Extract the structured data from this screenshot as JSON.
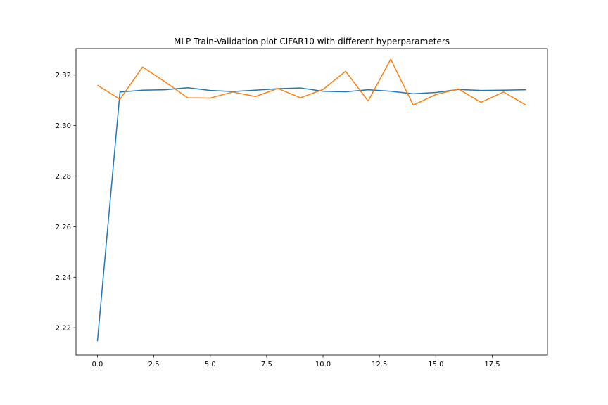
{
  "chart_data": {
    "type": "line",
    "title": "MLP Train-Validation plot CIFAR10 with different hyperparameters",
    "xlabel": "",
    "ylabel": "",
    "xlim": [
      -0.95,
      19.95
    ],
    "ylim": [
      2.2092,
      2.3305
    ],
    "grid": false,
    "xticks": [
      0.0,
      2.5,
      5.0,
      7.5,
      10.0,
      12.5,
      15.0,
      17.5
    ],
    "xtick_labels": [
      "0.0",
      "2.5",
      "5.0",
      "7.5",
      "10.0",
      "12.5",
      "15.0",
      "17.5"
    ],
    "yticks": [
      2.22,
      2.24,
      2.26,
      2.28,
      2.3,
      2.32
    ],
    "ytick_labels": [
      "2.22",
      "2.24",
      "2.26",
      "2.28",
      "2.30",
      "2.32"
    ],
    "x": [
      0,
      1,
      2,
      3,
      4,
      5,
      6,
      7,
      8,
      9,
      10,
      11,
      12,
      13,
      14,
      15,
      16,
      17,
      18,
      19
    ],
    "series": [
      {
        "color": "#1f77b4",
        "values": [
          2.2147,
          2.3133,
          2.314,
          2.3142,
          2.315,
          2.3139,
          2.3135,
          2.314,
          2.3146,
          2.3149,
          2.3136,
          2.3134,
          2.3142,
          2.3136,
          2.3126,
          2.3131,
          2.3143,
          2.3139,
          2.314,
          2.3142
        ]
      },
      {
        "color": "#ff7f0e",
        "values": [
          2.316,
          2.3104,
          2.3232,
          2.3173,
          2.311,
          2.3109,
          2.3133,
          2.3115,
          2.3147,
          2.311,
          2.3143,
          2.3215,
          2.3097,
          2.3263,
          2.3081,
          2.3123,
          2.3145,
          2.3092,
          2.3133,
          2.3081
        ]
      }
    ]
  }
}
